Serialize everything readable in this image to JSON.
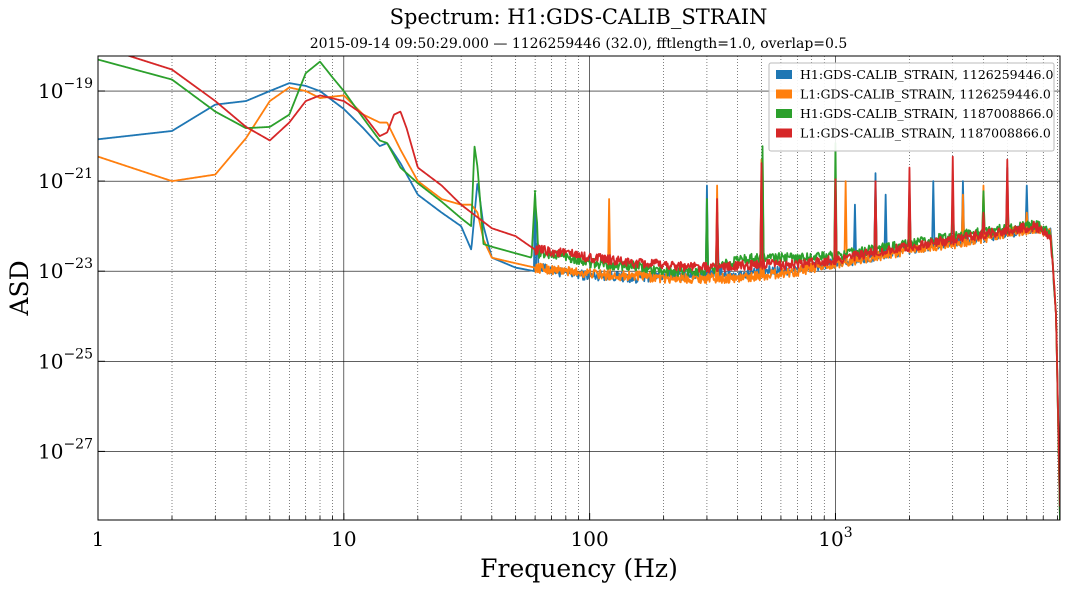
{
  "chart_data": {
    "type": "line",
    "title": "Spectrum: H1:GDS-CALIB_STRAIN",
    "subtitle": "2015-09-14 09:50:29.000 — 1126259446 (32.0), fftlength=1.0, overlap=0.5",
    "xlabel": "Frequency (Hz)",
    "ylabel": "ASD",
    "xscale": "log",
    "yscale": "log",
    "xlim": [
      1,
      8192
    ],
    "ylim": [
      3e-29,
      6e-19
    ],
    "x_tick_labels": [
      {
        "value": 1,
        "base": "1",
        "exp": ""
      },
      {
        "value": 10,
        "base": "10",
        "exp": ""
      },
      {
        "value": 100,
        "base": "100",
        "exp": ""
      },
      {
        "value": 1000,
        "base": "10",
        "exp": "3"
      }
    ],
    "y_tick_labels": [
      {
        "value": 1e-19,
        "base": "10",
        "exp": "−19"
      },
      {
        "value": 1e-21,
        "base": "10",
        "exp": "−21"
      },
      {
        "value": 1e-23,
        "base": "10",
        "exp": "−23"
      },
      {
        "value": 1e-25,
        "base": "10",
        "exp": "−25"
      },
      {
        "value": 1e-27,
        "base": "10",
        "exp": "−27"
      }
    ],
    "grid": true,
    "legend_position": "top-right",
    "series": [
      {
        "name": "H1:GDS-CALIB_STRAIN, 1126259446.0",
        "color": "#1f77b4",
        "points": [
          [
            1,
            8.5e-21
          ],
          [
            2,
            1.3e-20
          ],
          [
            3,
            5e-20
          ],
          [
            4,
            6e-20
          ],
          [
            5,
            1e-19
          ],
          [
            6,
            1.5e-19
          ],
          [
            7,
            1.3e-19
          ],
          [
            8,
            1e-19
          ],
          [
            10,
            4e-20
          ],
          [
            12,
            1.5e-20
          ],
          [
            14,
            6e-21
          ],
          [
            15,
            7e-21
          ],
          [
            17,
            2.5e-21
          ],
          [
            20,
            5e-22
          ],
          [
            25,
            2e-22
          ],
          [
            30,
            1e-22
          ],
          [
            33,
            3e-23
          ],
          [
            35,
            1e-21
          ],
          [
            37,
            1e-22
          ],
          [
            40,
            2e-23
          ],
          [
            50,
            1.2e-23
          ],
          [
            60,
            1e-23
          ],
          [
            61,
            5e-23
          ],
          [
            62,
            1.2e-23
          ],
          [
            80,
            9e-24
          ],
          [
            100,
            8e-24
          ],
          [
            120,
            8e-24
          ],
          [
            150,
            7e-24
          ],
          [
            200,
            8e-24
          ],
          [
            300,
            8e-24
          ],
          [
            330,
            1e-23
          ],
          [
            400,
            8e-24
          ],
          [
            500,
            1e-23
          ],
          [
            700,
            1.1e-23
          ],
          [
            1000,
            1.5e-23
          ],
          [
            1400,
            2e-23
          ],
          [
            2000,
            3e-23
          ],
          [
            3000,
            4.5e-23
          ],
          [
            5000,
            7e-23
          ],
          [
            6500,
            9e-23
          ],
          [
            7500,
            7e-23
          ],
          [
            7900,
            1e-24
          ],
          [
            8192,
            3e-29
          ]
        ],
        "spikes": [
          [
            60,
            5e-22
          ],
          [
            300,
            8e-22
          ],
          [
            331,
            2e-22
          ],
          [
            500,
            1e-21
          ],
          [
            505,
            2e-21
          ],
          [
            1000,
            1.2e-21
          ],
          [
            1200,
            3e-22
          ],
          [
            1455,
            1.5e-21
          ],
          [
            1600,
            5e-22
          ],
          [
            2000,
            8e-22
          ],
          [
            2500,
            1e-21
          ],
          [
            3000,
            4e-22
          ],
          [
            3300,
            1e-21
          ],
          [
            4000,
            3e-22
          ],
          [
            5000,
            2e-21
          ],
          [
            6000,
            8e-22
          ]
        ]
      },
      {
        "name": "L1:GDS-CALIB_STRAIN, 1126259446.0",
        "color": "#ff7f0e",
        "points": [
          [
            1,
            3.5e-21
          ],
          [
            2,
            1e-21
          ],
          [
            3,
            1.4e-21
          ],
          [
            4,
            9e-21
          ],
          [
            5,
            6e-20
          ],
          [
            6,
            1.2e-19
          ],
          [
            7,
            1e-19
          ],
          [
            8,
            7e-20
          ],
          [
            10,
            8e-20
          ],
          [
            12,
            3e-20
          ],
          [
            14,
            2e-20
          ],
          [
            15,
            2e-20
          ],
          [
            17,
            5e-21
          ],
          [
            20,
            1e-21
          ],
          [
            25,
            4e-22
          ],
          [
            30,
            3e-22
          ],
          [
            33,
            3e-22
          ],
          [
            35,
            2e-22
          ],
          [
            37,
            5e-23
          ],
          [
            40,
            2e-23
          ],
          [
            50,
            1.5e-23
          ],
          [
            60,
            1.2e-23
          ],
          [
            80,
            1e-23
          ],
          [
            100,
            9e-24
          ],
          [
            120,
            8e-24
          ],
          [
            150,
            8e-24
          ],
          [
            200,
            7e-24
          ],
          [
            300,
            7e-24
          ],
          [
            400,
            7e-24
          ],
          [
            500,
            8e-24
          ],
          [
            700,
            1e-23
          ],
          [
            1000,
            1.5e-23
          ],
          [
            1400,
            2e-23
          ],
          [
            2000,
            3e-23
          ],
          [
            3000,
            4e-23
          ],
          [
            5000,
            7e-23
          ],
          [
            6500,
            9e-23
          ],
          [
            7500,
            7e-23
          ],
          [
            7900,
            1e-24
          ],
          [
            8192,
            3e-29
          ]
        ],
        "spikes": [
          [
            120,
            4e-22
          ],
          [
            330,
            8e-22
          ],
          [
            500,
            3e-21
          ],
          [
            505,
            4e-21
          ],
          [
            1000,
            6e-22
          ],
          [
            1100,
            1e-21
          ],
          [
            2000,
            3e-22
          ],
          [
            3300,
            5e-22
          ],
          [
            4000,
            8e-22
          ],
          [
            5000,
            6e-22
          ],
          [
            6000,
            2e-22
          ]
        ]
      },
      {
        "name": "H1:GDS-CALIB_STRAIN, 1187008866.0",
        "color": "#2ca02c",
        "points": [
          [
            1,
            5e-19
          ],
          [
            2,
            1.8e-19
          ],
          [
            3,
            3.5e-20
          ],
          [
            4,
            1.5e-20
          ],
          [
            5,
            1.6e-20
          ],
          [
            6,
            3e-20
          ],
          [
            7,
            2.5e-19
          ],
          [
            8,
            4.5e-19
          ],
          [
            9,
            2e-19
          ],
          [
            10,
            1e-19
          ],
          [
            12,
            2.5e-20
          ],
          [
            14,
            8e-21
          ],
          [
            15,
            7e-21
          ],
          [
            17,
            2e-21
          ],
          [
            20,
            9e-22
          ],
          [
            25,
            3.5e-22
          ],
          [
            30,
            1.5e-22
          ],
          [
            33,
            1e-22
          ],
          [
            34,
            6e-21
          ],
          [
            35,
            2e-21
          ],
          [
            37,
            4e-23
          ],
          [
            40,
            3.5e-23
          ],
          [
            50,
            2.5e-23
          ],
          [
            58,
            2e-23
          ],
          [
            60,
            6e-22
          ],
          [
            62,
            2.5e-23
          ],
          [
            80,
            2.2e-23
          ],
          [
            100,
            1.5e-23
          ],
          [
            120,
            1.4e-23
          ],
          [
            150,
            1.3e-23
          ],
          [
            200,
            1e-23
          ],
          [
            300,
            1e-23
          ],
          [
            400,
            1.8e-23
          ],
          [
            500,
            2e-23
          ],
          [
            700,
            2e-23
          ],
          [
            1000,
            2.2e-23
          ],
          [
            1400,
            3e-23
          ],
          [
            2000,
            4e-23
          ],
          [
            3000,
            6e-23
          ],
          [
            5000,
            9e-23
          ],
          [
            6500,
            1.1e-22
          ],
          [
            7500,
            7e-23
          ],
          [
            7900,
            1e-24
          ],
          [
            8192,
            3e-29
          ]
        ],
        "spikes": [
          [
            60,
            6e-22
          ],
          [
            300,
            4e-22
          ],
          [
            330,
            2e-22
          ],
          [
            500,
            1e-21
          ],
          [
            505,
            6e-21
          ],
          [
            1000,
            7e-21
          ],
          [
            1455,
            6e-22
          ],
          [
            2000,
            6e-22
          ],
          [
            3000,
            6e-22
          ],
          [
            4000,
            6e-22
          ],
          [
            5000,
            6e-22
          ]
        ]
      },
      {
        "name": "L1:GDS-CALIB_STRAIN, 1187008866.0",
        "color": "#d62728",
        "points": [
          [
            1,
            1e-18
          ],
          [
            2,
            3e-19
          ],
          [
            3,
            6e-20
          ],
          [
            4,
            1.6e-20
          ],
          [
            5,
            8e-21
          ],
          [
            6,
            2e-20
          ],
          [
            7,
            6e-20
          ],
          [
            8,
            8e-20
          ],
          [
            10,
            6e-20
          ],
          [
            12,
            3e-20
          ],
          [
            14,
            1e-20
          ],
          [
            15,
            1.2e-20
          ],
          [
            16,
            3e-20
          ],
          [
            17,
            3.5e-20
          ],
          [
            18,
            1.5e-20
          ],
          [
            20,
            2e-21
          ],
          [
            25,
            8e-22
          ],
          [
            30,
            3e-22
          ],
          [
            40,
            9e-23
          ],
          [
            50,
            6e-23
          ],
          [
            60,
            3e-23
          ],
          [
            80,
            2.5e-23
          ],
          [
            100,
            2e-23
          ],
          [
            120,
            1.8e-23
          ],
          [
            150,
            1.5e-23
          ],
          [
            200,
            1.4e-23
          ],
          [
            300,
            1.2e-23
          ],
          [
            400,
            1.3e-23
          ],
          [
            500,
            1.4e-23
          ],
          [
            700,
            1.4e-23
          ],
          [
            1000,
            1.8e-23
          ],
          [
            1400,
            2.5e-23
          ],
          [
            2000,
            3.5e-23
          ],
          [
            3000,
            5e-23
          ],
          [
            5000,
            8e-23
          ],
          [
            6500,
            1e-22
          ],
          [
            7500,
            6e-23
          ],
          [
            7900,
            1e-24
          ],
          [
            8192,
            6e-29
          ]
        ],
        "spikes": [
          [
            330,
            4e-22
          ],
          [
            500,
            2.5e-21
          ],
          [
            1000,
            1.1e-21
          ],
          [
            1455,
            1e-21
          ],
          [
            2000,
            2e-21
          ],
          [
            3000,
            3.5e-21
          ],
          [
            4000,
            2e-22
          ],
          [
            5000,
            3e-21
          ]
        ]
      }
    ]
  }
}
